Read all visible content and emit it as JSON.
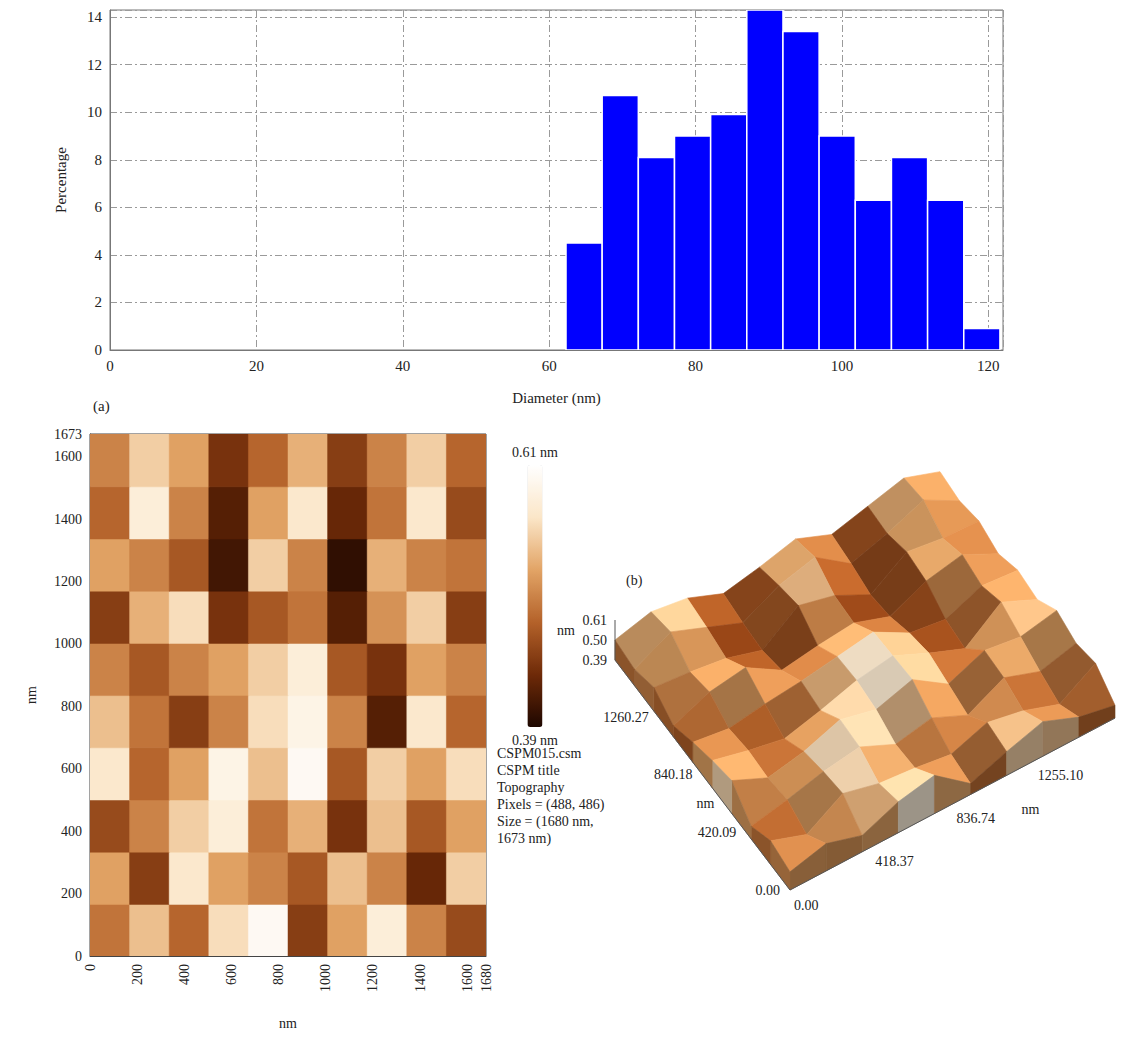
{
  "chart_data": [
    {
      "type": "histogram",
      "xlabel": "Diameter (nm)",
      "ylabel": "Percentage",
      "bins": [
        62.3,
        67.24,
        72.18,
        77.12,
        82.06,
        87.0,
        91.94,
        96.88,
        101.82,
        106.76,
        111.7,
        116.64,
        121.58
      ],
      "values": [
        4.5,
        10.7,
        8.1,
        9.0,
        9.9,
        14.3,
        13.4,
        9.0,
        6.3,
        8.1,
        6.3,
        0.9
      ],
      "color": "#0000ff",
      "xlim": [
        0,
        122
      ],
      "ylim": [
        0,
        14.3
      ],
      "xticks": [
        0,
        20,
        40,
        60,
        80,
        100,
        120
      ],
      "yticks": [
        0,
        2,
        4,
        6,
        8,
        10,
        12,
        14
      ],
      "grid": true
    },
    {
      "type": "heatmap",
      "panel": "(a)",
      "xlabel": "nm",
      "ylabel": "nm",
      "xlim": [
        0,
        1680
      ],
      "ylim": [
        0,
        1673
      ],
      "xticks": [
        0,
        200,
        400,
        600,
        800,
        1000,
        1200,
        1400,
        1600,
        1680
      ],
      "yticks": [
        0,
        200,
        400,
        600,
        800,
        1000,
        1200,
        1400,
        1600,
        1673
      ],
      "cells": [
        [
          0.49,
          0.54,
          0.48,
          0.56,
          0.6,
          0.45,
          0.52,
          0.58,
          0.5,
          0.46
        ],
        [
          0.52,
          0.45,
          0.57,
          0.52,
          0.5,
          0.47,
          0.54,
          0.5,
          0.43,
          0.55
        ],
        [
          0.46,
          0.5,
          0.55,
          0.58,
          0.49,
          0.53,
          0.44,
          0.54,
          0.47,
          0.52
        ],
        [
          0.57,
          0.48,
          0.52,
          0.59,
          0.54,
          0.6,
          0.47,
          0.55,
          0.52,
          0.56
        ],
        [
          0.54,
          0.49,
          0.45,
          0.5,
          0.56,
          0.59,
          0.5,
          0.42,
          0.57,
          0.48
        ],
        [
          0.5,
          0.47,
          0.5,
          0.52,
          0.55,
          0.58,
          0.47,
          0.44,
          0.52,
          0.5
        ],
        [
          0.45,
          0.53,
          0.56,
          0.44,
          0.47,
          0.49,
          0.42,
          0.51,
          0.55,
          0.45
        ],
        [
          0.52,
          0.5,
          0.47,
          0.41,
          0.55,
          0.5,
          0.4,
          0.53,
          0.5,
          0.49
        ],
        [
          0.48,
          0.58,
          0.5,
          0.42,
          0.52,
          0.57,
          0.43,
          0.49,
          0.57,
          0.46
        ],
        [
          0.5,
          0.55,
          0.52,
          0.44,
          0.48,
          0.53,
          0.45,
          0.5,
          0.55,
          0.48
        ]
      ],
      "colorbar": {
        "range": [
          0.39,
          0.61
        ],
        "ticks": [
          {
            "value": 0.39,
            "label": "0.39 nm"
          },
          {
            "value": 0.61,
            "label": "0.61 nm"
          }
        ]
      },
      "info": [
        "CSPM015.csm",
        "CSPM title",
        "Topography",
        "Pixels = (488, 486)",
        "Size = (1680 nm,",
        "1673 nm)"
      ]
    },
    {
      "type": "surface",
      "panel": "(b)",
      "xlabel": "nm",
      "ylabel": "nm",
      "zlabel": "nm",
      "xlim": [
        0,
        1673
      ],
      "ylim": [
        0,
        1680
      ],
      "zlim": [
        0.39,
        0.61
      ],
      "xticks": [
        {
          "value": 0,
          "label": "0.00"
        },
        418.37,
        836.74,
        {
          "value": 1255.1,
          "label": "1255.10"
        }
      ],
      "yticks": [
        {
          "value": 0,
          "label": "0.00"
        },
        420.09,
        840.18,
        1260.27
      ],
      "zticks": [
        0.39,
        {
          "value": 0.5,
          "label": "0.50"
        },
        0.61
      ]
    }
  ]
}
